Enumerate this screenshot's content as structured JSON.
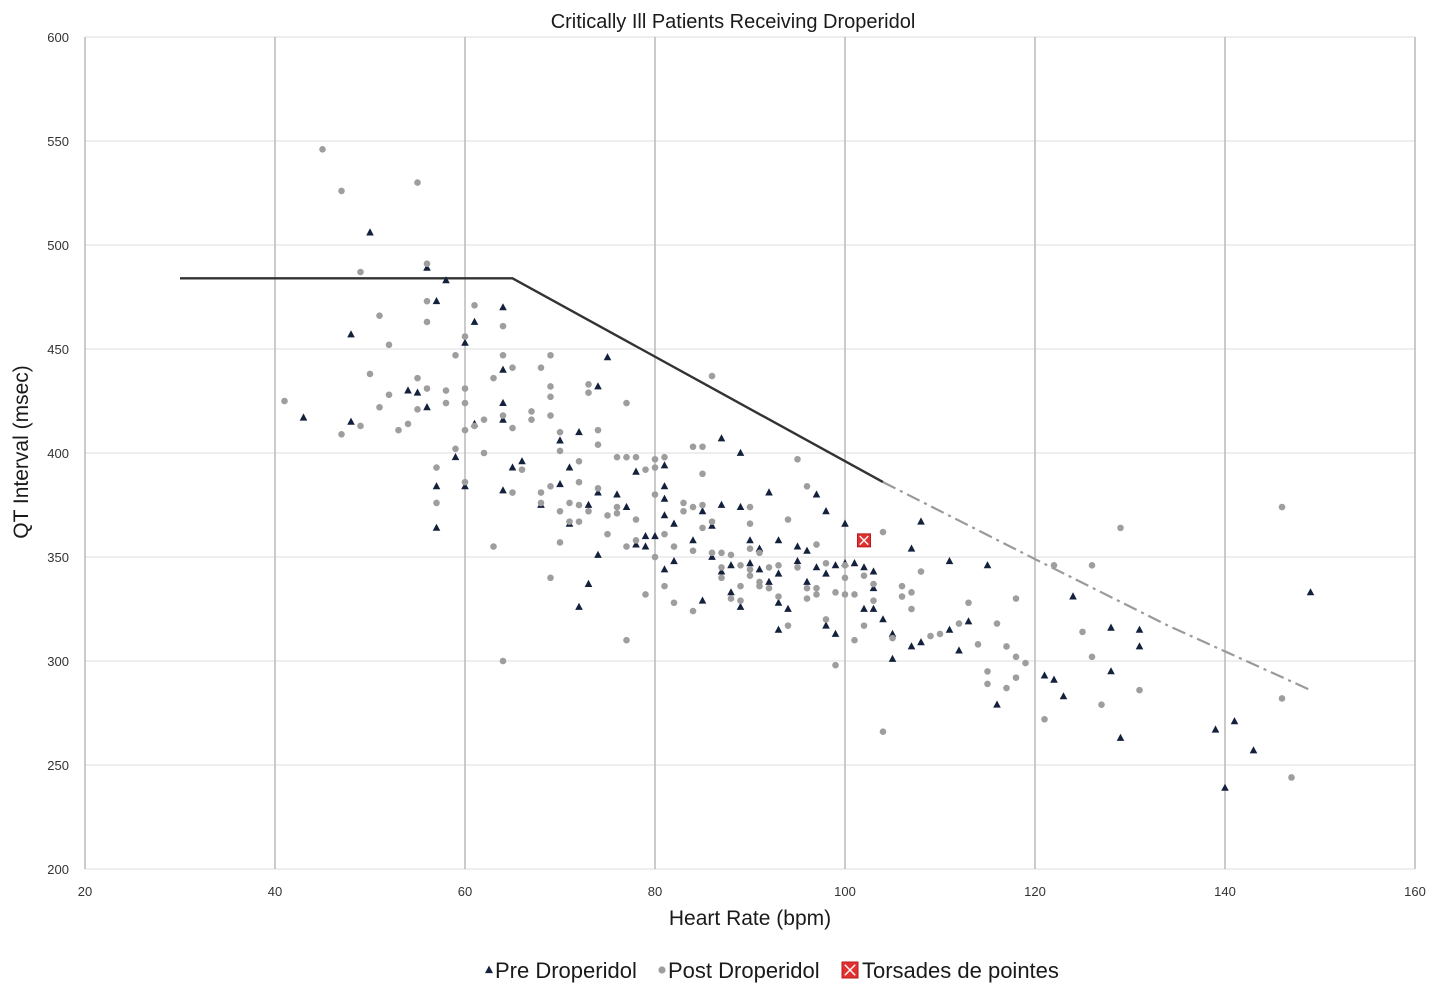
{
  "chart_data": {
    "type": "scatter",
    "title": "Critically Ill Patients Receiving Droperidol",
    "xlabel": "Heart Rate (bpm)",
    "ylabel": "QT Interval (msec)",
    "xlim": [
      20,
      160
    ],
    "ylim": [
      200,
      600
    ],
    "xticks": [
      "20",
      "40",
      "60",
      "80",
      "100",
      "120",
      "140",
      "160"
    ],
    "yticks": [
      "200",
      "250",
      "300",
      "350",
      "400",
      "450",
      "500",
      "550",
      "600"
    ],
    "grid": true,
    "legend_position": "bottom",
    "colors": {
      "pre": "#14213d",
      "post": "#9e9e9e",
      "torsades": "#e03030",
      "threshold_line": "#333333",
      "threshold_extension": "#9a9a9a",
      "grid_vertical": "#b5b5b5",
      "grid_horizontal": "#dcdcdc"
    },
    "threshold_line": [
      [
        30,
        484
      ],
      [
        65,
        484
      ],
      [
        104,
        386
      ]
    ],
    "threshold_extension": [
      [
        104,
        386
      ],
      [
        120,
        349
      ],
      [
        134,
        317
      ],
      [
        149,
        286
      ]
    ],
    "series": [
      {
        "name": "Pre Droperidol",
        "marker": "triangle",
        "points": [
          [
            43,
            417
          ],
          [
            48,
            457
          ],
          [
            48,
            415
          ],
          [
            50,
            506
          ],
          [
            54,
            430
          ],
          [
            55,
            429
          ],
          [
            56,
            489
          ],
          [
            56,
            422
          ],
          [
            57,
            473
          ],
          [
            57,
            384
          ],
          [
            57,
            364
          ],
          [
            58,
            483
          ],
          [
            59,
            398
          ],
          [
            60,
            453
          ],
          [
            60,
            384
          ],
          [
            61,
            463
          ],
          [
            61,
            414
          ],
          [
            64,
            470
          ],
          [
            64,
            424
          ],
          [
            64,
            440
          ],
          [
            64,
            416
          ],
          [
            64,
            382
          ],
          [
            65,
            393
          ],
          [
            66,
            396
          ],
          [
            68,
            375
          ],
          [
            70,
            406
          ],
          [
            70,
            385
          ],
          [
            71,
            393
          ],
          [
            71,
            366
          ],
          [
            72,
            410
          ],
          [
            72,
            326
          ],
          [
            73,
            375
          ],
          [
            73,
            337
          ],
          [
            74,
            432
          ],
          [
            74,
            381
          ],
          [
            74,
            351
          ],
          [
            75,
            446
          ],
          [
            76,
            380
          ],
          [
            77,
            374
          ],
          [
            78,
            391
          ],
          [
            78,
            356
          ],
          [
            79,
            360
          ],
          [
            79,
            355
          ],
          [
            80,
            360
          ],
          [
            81,
            394
          ],
          [
            81,
            384
          ],
          [
            81,
            378
          ],
          [
            81,
            370
          ],
          [
            81,
            344
          ],
          [
            82,
            366
          ],
          [
            82,
            348
          ],
          [
            84,
            358
          ],
          [
            85,
            372
          ],
          [
            85,
            329
          ],
          [
            86,
            365
          ],
          [
            86,
            350
          ],
          [
            87,
            407
          ],
          [
            87,
            375
          ],
          [
            87,
            343
          ],
          [
            88,
            346
          ],
          [
            88,
            333
          ],
          [
            89,
            400
          ],
          [
            89,
            374
          ],
          [
            89,
            326
          ],
          [
            90,
            358
          ],
          [
            90,
            347
          ],
          [
            91,
            354
          ],
          [
            91,
            344
          ],
          [
            92,
            381
          ],
          [
            92,
            338
          ],
          [
            93,
            358
          ],
          [
            93,
            342
          ],
          [
            93,
            328
          ],
          [
            93,
            315
          ],
          [
            94,
            325
          ],
          [
            95,
            348
          ],
          [
            95,
            355
          ],
          [
            96,
            353
          ],
          [
            96,
            338
          ],
          [
            97,
            345
          ],
          [
            97,
            380
          ],
          [
            98,
            372
          ],
          [
            98,
            342
          ],
          [
            98,
            317
          ],
          [
            99,
            346
          ],
          [
            99,
            313
          ],
          [
            100,
            366
          ],
          [
            100,
            347
          ],
          [
            101,
            347
          ],
          [
            102,
            345
          ],
          [
            102,
            325
          ],
          [
            103,
            343
          ],
          [
            103,
            335
          ],
          [
            103,
            325
          ],
          [
            104,
            320
          ],
          [
            105,
            313
          ],
          [
            105,
            301
          ],
          [
            107,
            354
          ],
          [
            107,
            307
          ],
          [
            108,
            367
          ],
          [
            108,
            309
          ],
          [
            111,
            348
          ],
          [
            111,
            315
          ],
          [
            112,
            305
          ],
          [
            113,
            319
          ],
          [
            115,
            346
          ],
          [
            116,
            279
          ],
          [
            121,
            293
          ],
          [
            122,
            291
          ],
          [
            123,
            283
          ],
          [
            124,
            331
          ],
          [
            128,
            316
          ],
          [
            128,
            295
          ],
          [
            129,
            263
          ],
          [
            131,
            315
          ],
          [
            131,
            307
          ],
          [
            139,
            267
          ],
          [
            140,
            239
          ],
          [
            141,
            271
          ],
          [
            143,
            257
          ],
          [
            149,
            333
          ]
        ]
      },
      {
        "name": "Post Droperidol",
        "marker": "circle",
        "points": [
          [
            41,
            425
          ],
          [
            45,
            546
          ],
          [
            47,
            526
          ],
          [
            47,
            409
          ],
          [
            49,
            487
          ],
          [
            49,
            413
          ],
          [
            50,
            438
          ],
          [
            51,
            466
          ],
          [
            51,
            422
          ],
          [
            52,
            452
          ],
          [
            52,
            428
          ],
          [
            53,
            411
          ],
          [
            54,
            414
          ],
          [
            55,
            530
          ],
          [
            55,
            436
          ],
          [
            55,
            421
          ],
          [
            56,
            491
          ],
          [
            56,
            473
          ],
          [
            56,
            463
          ],
          [
            56,
            431
          ],
          [
            57,
            393
          ],
          [
            57,
            376
          ],
          [
            58,
            430
          ],
          [
            58,
            424
          ],
          [
            59,
            447
          ],
          [
            59,
            402
          ],
          [
            60,
            456
          ],
          [
            60,
            431
          ],
          [
            60,
            424
          ],
          [
            60,
            411
          ],
          [
            60,
            386
          ],
          [
            61,
            471
          ],
          [
            61,
            413
          ],
          [
            62,
            416
          ],
          [
            62,
            400
          ],
          [
            63,
            436
          ],
          [
            63,
            355
          ],
          [
            64,
            461
          ],
          [
            64,
            447
          ],
          [
            64,
            418
          ],
          [
            64,
            300
          ],
          [
            65,
            441
          ],
          [
            65,
            412
          ],
          [
            65,
            381
          ],
          [
            66,
            392
          ],
          [
            67,
            420
          ],
          [
            67,
            416
          ],
          [
            68,
            441
          ],
          [
            68,
            381
          ],
          [
            68,
            376
          ],
          [
            69,
            447
          ],
          [
            69,
            432
          ],
          [
            69,
            427
          ],
          [
            69,
            418
          ],
          [
            69,
            384
          ],
          [
            69,
            340
          ],
          [
            70,
            410
          ],
          [
            70,
            401
          ],
          [
            70,
            372
          ],
          [
            70,
            357
          ],
          [
            71,
            367
          ],
          [
            71,
            376
          ],
          [
            72,
            396
          ],
          [
            72,
            386
          ],
          [
            72,
            375
          ],
          [
            72,
            367
          ],
          [
            73,
            433
          ],
          [
            73,
            429
          ],
          [
            73,
            372
          ],
          [
            74,
            411
          ],
          [
            74,
            404
          ],
          [
            74,
            383
          ],
          [
            75,
            370
          ],
          [
            75,
            361
          ],
          [
            76,
            374
          ],
          [
            76,
            371
          ],
          [
            76,
            398
          ],
          [
            77,
            424
          ],
          [
            77,
            398
          ],
          [
            77,
            355
          ],
          [
            77,
            310
          ],
          [
            78,
            398
          ],
          [
            78,
            368
          ],
          [
            78,
            358
          ],
          [
            79,
            392
          ],
          [
            79,
            332
          ],
          [
            80,
            397
          ],
          [
            80,
            393
          ],
          [
            80,
            380
          ],
          [
            80,
            350
          ],
          [
            81,
            398
          ],
          [
            81,
            361
          ],
          [
            81,
            336
          ],
          [
            82,
            355
          ],
          [
            82,
            328
          ],
          [
            83,
            376
          ],
          [
            83,
            372
          ],
          [
            84,
            403
          ],
          [
            84,
            374
          ],
          [
            84,
            353
          ],
          [
            84,
            324
          ],
          [
            85,
            403
          ],
          [
            85,
            390
          ],
          [
            85,
            375
          ],
          [
            85,
            364
          ],
          [
            86,
            437
          ],
          [
            86,
            367
          ],
          [
            86,
            352
          ],
          [
            87,
            352
          ],
          [
            87,
            345
          ],
          [
            87,
            340
          ],
          [
            88,
            351
          ],
          [
            88,
            330
          ],
          [
            89,
            346
          ],
          [
            89,
            336
          ],
          [
            89,
            329
          ],
          [
            90,
            374
          ],
          [
            90,
            366
          ],
          [
            90,
            354
          ],
          [
            90,
            344
          ],
          [
            90,
            341
          ],
          [
            91,
            352
          ],
          [
            91,
            338
          ],
          [
            91,
            336
          ],
          [
            92,
            345
          ],
          [
            92,
            335
          ],
          [
            93,
            346
          ],
          [
            93,
            331
          ],
          [
            94,
            368
          ],
          [
            94,
            317
          ],
          [
            95,
            397
          ],
          [
            95,
            345
          ],
          [
            96,
            384
          ],
          [
            96,
            335
          ],
          [
            96,
            330
          ],
          [
            97,
            356
          ],
          [
            97,
            335
          ],
          [
            97,
            332
          ],
          [
            98,
            347
          ],
          [
            98,
            320
          ],
          [
            99,
            333
          ],
          [
            99,
            298
          ],
          [
            100,
            346
          ],
          [
            100,
            340
          ],
          [
            100,
            332
          ],
          [
            101,
            332
          ],
          [
            101,
            310
          ],
          [
            102,
            341
          ],
          [
            102,
            317
          ],
          [
            103,
            337
          ],
          [
            103,
            329
          ],
          [
            104,
            362
          ],
          [
            104,
            266
          ],
          [
            105,
            311
          ],
          [
            106,
            336
          ],
          [
            106,
            331
          ],
          [
            107,
            333
          ],
          [
            107,
            325
          ],
          [
            108,
            343
          ],
          [
            109,
            312
          ],
          [
            110,
            313
          ],
          [
            112,
            318
          ],
          [
            113,
            328
          ],
          [
            114,
            308
          ],
          [
            115,
            295
          ],
          [
            115,
            289
          ],
          [
            116,
            318
          ],
          [
            117,
            307
          ],
          [
            117,
            287
          ],
          [
            118,
            330
          ],
          [
            118,
            302
          ],
          [
            118,
            292
          ],
          [
            119,
            299
          ],
          [
            121,
            272
          ],
          [
            122,
            346
          ],
          [
            125,
            314
          ],
          [
            126,
            346
          ],
          [
            126,
            302
          ],
          [
            127,
            279
          ],
          [
            129,
            364
          ],
          [
            131,
            286
          ],
          [
            146,
            374
          ],
          [
            146,
            282
          ],
          [
            147,
            244
          ]
        ]
      },
      {
        "name": "Torsades de pointes",
        "marker": "square",
        "points": [
          [
            102,
            358
          ]
        ]
      }
    ]
  }
}
